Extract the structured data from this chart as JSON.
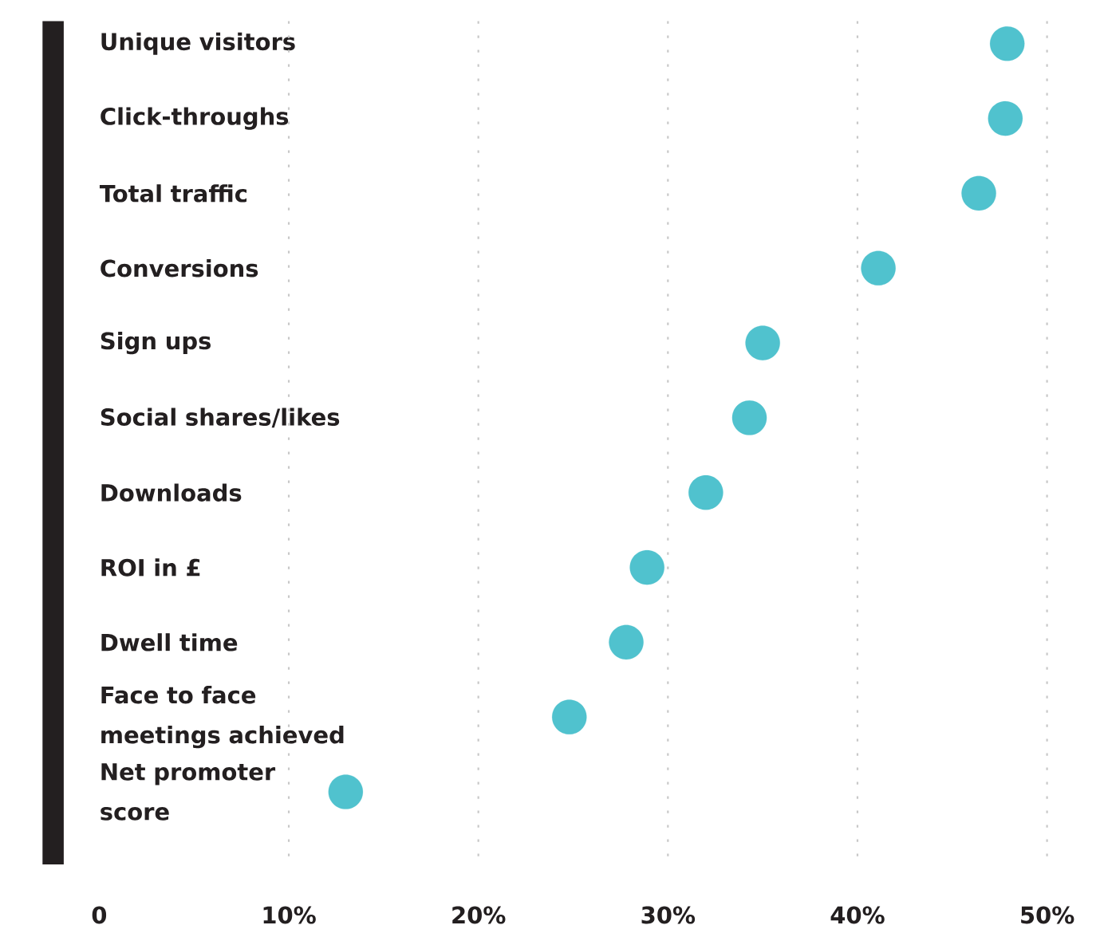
{
  "chart_data": {
    "type": "scatter",
    "orientation": "horizontal",
    "categories": [
      "Unique visitors",
      "Click-throughs",
      "Total traffic",
      "Conversions",
      "Sign ups",
      "Social shares/likes",
      "Downloads",
      "ROI in £",
      "Dwell time",
      "Face to face meetings achieved",
      "Net promoter score"
    ],
    "values": [
      47.9,
      47.8,
      46.4,
      41.1,
      35.0,
      34.3,
      32.0,
      28.9,
      27.8,
      24.8,
      13.0
    ],
    "color": "#50c2ce",
    "marker": "circle",
    "grid": "x",
    "xlim": [
      0,
      50
    ],
    "xticks": [
      0,
      {
        "value": 10,
        "label": "10%"
      },
      {
        "value": 20,
        "label": "20%"
      },
      {
        "value": 30,
        "label": "30%"
      },
      {
        "value": 40,
        "label": "40%"
      },
      {
        "value": 50,
        "label": "50%"
      }
    ]
  }
}
